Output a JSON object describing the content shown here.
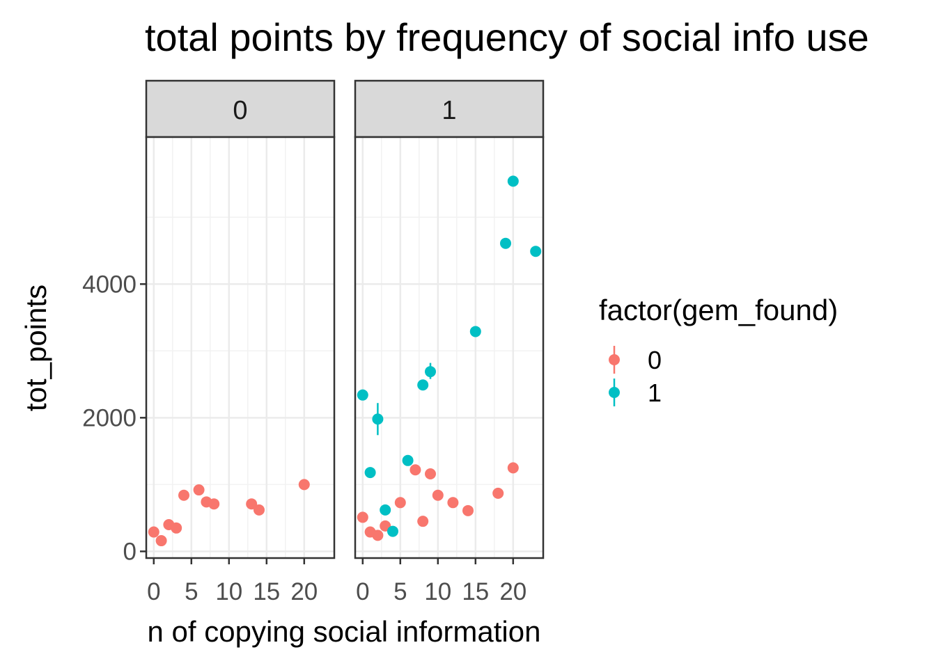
{
  "chart_data": {
    "type": "scatter",
    "title": "total points by frequency of social info use",
    "xlabel": "n of copying social information",
    "ylabel": "tot_points",
    "facet_labels": [
      "0",
      "1"
    ],
    "xlim": [
      -1,
      24
    ],
    "ylim": [
      -100,
      6200
    ],
    "x_ticks": [
      0,
      5,
      10,
      15,
      20
    ],
    "x_tick_labels": [
      "0",
      "5",
      "10",
      "15",
      "20"
    ],
    "y_ticks": [
      0,
      2000,
      4000
    ],
    "y_tick_labels": [
      "0",
      "2000",
      "4000"
    ],
    "grid": true,
    "legend": {
      "title": "factor(gem_found)",
      "position": "right",
      "entries": [
        {
          "label": "0",
          "color": "#F8766D"
        },
        {
          "label": "1",
          "color": "#00BFC4"
        }
      ]
    },
    "series": [
      {
        "facet": "0",
        "gem_found": "0",
        "color": "#F8766D",
        "points": [
          {
            "x": 0,
            "y": 290
          },
          {
            "x": 1,
            "y": 160
          },
          {
            "x": 2,
            "y": 400
          },
          {
            "x": 3,
            "y": 350
          },
          {
            "x": 4,
            "y": 840
          },
          {
            "x": 6,
            "y": 920
          },
          {
            "x": 7,
            "y": 740
          },
          {
            "x": 8,
            "y": 710
          },
          {
            "x": 13,
            "y": 710
          },
          {
            "x": 14,
            "y": 620
          },
          {
            "x": 20,
            "y": 1000
          }
        ]
      },
      {
        "facet": "1",
        "gem_found": "0",
        "color": "#F8766D",
        "points": [
          {
            "x": 0,
            "y": 510
          },
          {
            "x": 1,
            "y": 290
          },
          {
            "x": 2,
            "y": 240
          },
          {
            "x": 3,
            "y": 380
          },
          {
            "x": 5,
            "y": 730
          },
          {
            "x": 7,
            "y": 1220
          },
          {
            "x": 8,
            "y": 450
          },
          {
            "x": 9,
            "y": 1160
          },
          {
            "x": 10,
            "y": 840
          },
          {
            "x": 12,
            "y": 730
          },
          {
            "x": 14,
            "y": 610
          },
          {
            "x": 18,
            "y": 870
          },
          {
            "x": 20,
            "y": 1250
          }
        ]
      },
      {
        "facet": "1",
        "gem_found": "1",
        "color": "#00BFC4",
        "points": [
          {
            "x": 0,
            "y": 2340
          },
          {
            "x": 1,
            "y": 1180
          },
          {
            "x": 2,
            "y": 1980,
            "ymin": 1740,
            "ymax": 2220
          },
          {
            "x": 3,
            "y": 620
          },
          {
            "x": 4,
            "y": 300
          },
          {
            "x": 6,
            "y": 1360
          },
          {
            "x": 8,
            "y": 2490
          },
          {
            "x": 9,
            "y": 2690,
            "ymin": 2580,
            "ymax": 2820
          },
          {
            "x": 15,
            "y": 3290
          },
          {
            "x": 19,
            "y": 4610
          },
          {
            "x": 20,
            "y": 5540
          },
          {
            "x": 23,
            "y": 4490
          }
        ]
      }
    ]
  }
}
